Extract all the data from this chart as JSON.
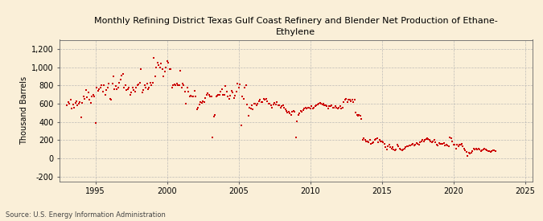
{
  "title": "Monthly Refining District Texas Gulf Coast Refinery and Blender Net Production of Ethane-\nEthylene",
  "ylabel": "Thousand Barrels",
  "source": "Source: U.S. Energy Information Administration",
  "background_color": "#faefd8",
  "dot_color": "#cc0000",
  "xlim": [
    1992.5,
    2025.5
  ],
  "ylim": [
    -250,
    1300
  ],
  "yticks": [
    -200,
    0,
    200,
    400,
    600,
    800,
    1000,
    1200
  ],
  "xticks": [
    1995,
    2000,
    2005,
    2010,
    2015,
    2020,
    2025
  ],
  "data": {
    "1993": [
      580,
      620,
      600,
      640,
      550,
      590,
      560,
      610,
      630,
      580,
      600,
      620
    ],
    "1994": [
      450,
      610,
      680,
      650,
      750,
      670,
      720,
      640,
      610,
      680,
      700,
      680
    ],
    "1995": [
      390,
      780,
      740,
      760,
      780,
      800,
      730,
      800,
      700,
      750,
      780,
      820
    ],
    "1996": [
      650,
      640,
      820,
      900,
      760,
      790,
      760,
      780,
      830,
      860,
      910,
      930
    ],
    "1997": [
      780,
      800,
      750,
      760,
      780,
      700,
      720,
      780,
      750,
      730,
      780,
      800
    ],
    "1998": [
      810,
      830,
      980,
      720,
      750,
      800,
      780,
      820,
      760,
      780,
      830,
      800
    ],
    "1999": [
      830,
      1100,
      900,
      1000,
      1050,
      1020,
      1000,
      1040,
      980,
      900,
      950,
      1000
    ],
    "2000": [
      1070,
      1050,
      980,
      980,
      780,
      800,
      810,
      800,
      820,
      800,
      800,
      960
    ],
    "2001": [
      780,
      820,
      800,
      730,
      600,
      780,
      730,
      680,
      690,
      680,
      680,
      740
    ],
    "2002": [
      680,
      540,
      560,
      590,
      620,
      610,
      630,
      620,
      660,
      700,
      710,
      700
    ],
    "2003": [
      680,
      680,
      230,
      460,
      480,
      680,
      690,
      700,
      700,
      730,
      760,
      700
    ],
    "2004": [
      700,
      790,
      730,
      680,
      650,
      690,
      740,
      720,
      660,
      690,
      730,
      820
    ],
    "2005": [
      780,
      810,
      360,
      680,
      650,
      780,
      800,
      590,
      470,
      560,
      550,
      580
    ],
    "2006": [
      540,
      600,
      600,
      580,
      600,
      630,
      640,
      620,
      620,
      650,
      640,
      650
    ],
    "2007": [
      630,
      600,
      600,
      580,
      560,
      590,
      610,
      590,
      620,
      580,
      580,
      560
    ],
    "2008": [
      570,
      580,
      560,
      540,
      520,
      500,
      510,
      490,
      480,
      510,
      520,
      510
    ],
    "2009": [
      230,
      410,
      480,
      490,
      520,
      510,
      530,
      550,
      560,
      550,
      560,
      560
    ],
    "2010": [
      550,
      570,
      550,
      560,
      570,
      580,
      590,
      600,
      610,
      600,
      590,
      600
    ],
    "2011": [
      580,
      580,
      570,
      550,
      570,
      570,
      580,
      560,
      560,
      570,
      560,
      550
    ],
    "2012": [
      560,
      570,
      550,
      560,
      620,
      640,
      650,
      620,
      640,
      640,
      630,
      640
    ],
    "2013": [
      620,
      640,
      500,
      480,
      470,
      480,
      470,
      430,
      200,
      220,
      200,
      190
    ],
    "2014": [
      190,
      180,
      200,
      160,
      170,
      180,
      200,
      210,
      220,
      180,
      200,
      190
    ],
    "2015": [
      190,
      180,
      160,
      120,
      100,
      130,
      150,
      120,
      110,
      120,
      100,
      90
    ],
    "2016": [
      100,
      150,
      130,
      110,
      100,
      90,
      100,
      110,
      120,
      130,
      130,
      140
    ],
    "2017": [
      140,
      150,
      160,
      140,
      150,
      170,
      160,
      150,
      180,
      190,
      200,
      190
    ],
    "2018": [
      200,
      210,
      220,
      210,
      200,
      190,
      180,
      190,
      200,
      180,
      150,
      140
    ],
    "2019": [
      170,
      160,
      160,
      160,
      170,
      140,
      150,
      140,
      130,
      230,
      220,
      190
    ],
    "2020": [
      150,
      150,
      110,
      150,
      130,
      150,
      150,
      160,
      130,
      110,
      90,
      70
    ],
    "2021": [
      30,
      60,
      50,
      60,
      80,
      110,
      100,
      110,
      100,
      110,
      100,
      80
    ],
    "2022": [
      90,
      100,
      110,
      100,
      90,
      80,
      80,
      75,
      80,
      90,
      85,
      80
    ]
  }
}
